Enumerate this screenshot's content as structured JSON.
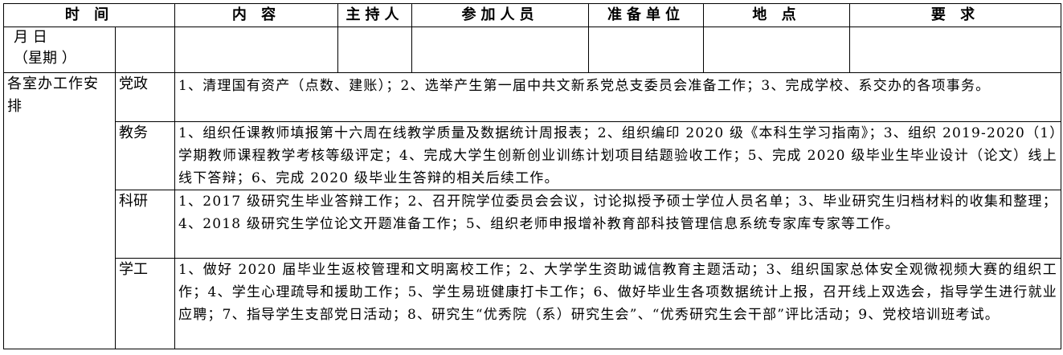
{
  "header": [
    "时 间",
    "内 容",
    "主持人",
    "参加人员",
    "准备单位",
    "地 点",
    "要 求"
  ],
  "subheader": {
    "date_label": "月 日",
    "weekday_label": "（星期 ）"
  },
  "section_label": "各室办工作安排",
  "rows": [
    {
      "dept": "党政",
      "content": "1、清理国有资产（点数、建账）；2、选举产生第一届中共文新系党总支委员会准备工作；3、完成学校、系交办的各项事务。"
    },
    {
      "dept": "教务",
      "content": "1、组织任课教师填报第十六周在线教学质量及数据统计周报表；2、组织编印 2020 级《本科生学习指南》；3、组织 2019-2020（1）学期教师课程教学考核等级评定；4、完成大学生创新创业训练计划项目结题验收工作；5、完成 2020 级毕业生毕业设计（论文）线上线下答辩；6、完成 2020 级毕业生答辩的相关后续工作。"
    },
    {
      "dept": "科研",
      "content": "1、2017 级研究生毕业答辩工作；2、召开院学位委员会会议，讨论拟授予硕士学位人员名单；3、毕业研究生归档材料的收集和整理；4、2018 级研究生学位论文开题准备工作；5、组织老师申报增补教育部科技管理信息系统专家库专家等工作。"
    },
    {
      "dept": "学工",
      "content": "1、做好 2020 届毕业生返校管理和文明离校工作；2、大学学生资助诚信教育主题活动；3、组织国家总体安全观微视频大赛的组织工作；4、学生心理疏导和援助工作；5、学生易班健康打卡工作；6、做好毕业生各项数据统计上报，召开线上双选会，指导学生进行就业应聘；7、指导学生支部党日活动；8、研究生“优秀院（系）研究生会”、“优秀研究生会干部”评比活动；9、党校培训班考试。"
    }
  ]
}
